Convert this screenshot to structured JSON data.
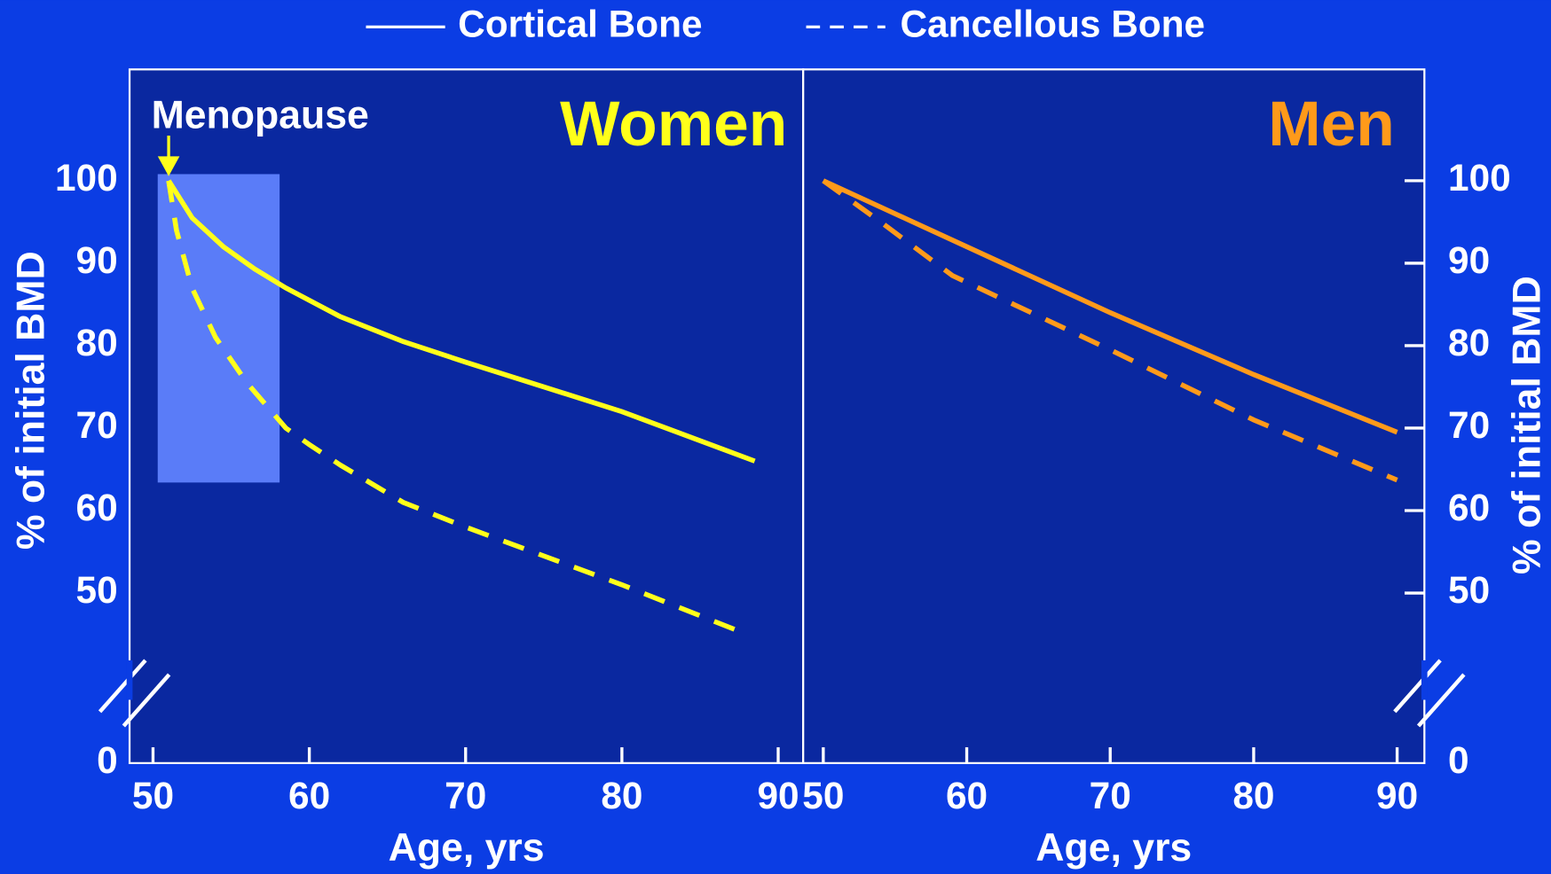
{
  "legend": [
    {
      "name": "Cortical Bone",
      "style": "solid"
    },
    {
      "name": "Cancellous Bone",
      "style": "dashed"
    }
  ],
  "chart_data": [
    {
      "type": "line",
      "title": "Women",
      "title_color": "#ffff1a",
      "x_label": "Age, yrs",
      "y_label": "% of initial BMD",
      "xlim": [
        48.5,
        91.6
      ],
      "xticks": [
        50,
        60,
        70,
        80,
        90
      ],
      "ylim": [
        0,
        113.5
      ],
      "yticks": [
        0,
        50,
        60,
        70,
        80,
        90,
        100
      ],
      "axis_break": [
        0,
        41
      ],
      "y_axis_side": "left",
      "highlight": {
        "label": "Menopause",
        "xrange": [
          50.3,
          58.1
        ],
        "yrange": [
          63.4,
          100.8
        ],
        "arrow_x": 51
      },
      "series": [
        {
          "style": "solid",
          "color": "#ffff1a",
          "x": [
            51,
            52.5,
            54.5,
            56.5,
            58.5,
            62,
            66,
            70,
            80,
            88.5
          ],
          "values": [
            100,
            95.5,
            92,
            89.3,
            87,
            83.5,
            80.5,
            78,
            72,
            66
          ]
        },
        {
          "style": "dashed",
          "color": "#ffff1a",
          "x": [
            51,
            51.5,
            52.5,
            54,
            56,
            58.5,
            60,
            62,
            66,
            70,
            80,
            88
          ],
          "values": [
            100,
            94,
            87,
            81,
            75.5,
            70,
            68,
            65.5,
            61,
            58,
            51,
            45
          ]
        }
      ]
    },
    {
      "type": "line",
      "title": "Men",
      "title_color": "#ff9a1a",
      "x_label": "Age, yrs",
      "y_label": "% of initial BMD",
      "xlim": [
        48.6,
        91.9
      ],
      "xticks": [
        50,
        60,
        70,
        80,
        90
      ],
      "ylim": [
        0,
        113.5
      ],
      "yticks": [
        0,
        50,
        60,
        70,
        80,
        90,
        100
      ],
      "axis_break": [
        0,
        41
      ],
      "y_axis_side": "right",
      "series": [
        {
          "style": "solid",
          "color": "#ff9a1a",
          "x": [
            50,
            60,
            70,
            80,
            90
          ],
          "values": [
            100,
            92,
            84,
            76.5,
            69.5
          ]
        },
        {
          "style": "dashed",
          "color": "#ff9a1a",
          "x": [
            50,
            54,
            59,
            70,
            80,
            90
          ],
          "values": [
            100,
            95,
            88.5,
            79.5,
            71,
            63.7
          ]
        }
      ]
    }
  ]
}
